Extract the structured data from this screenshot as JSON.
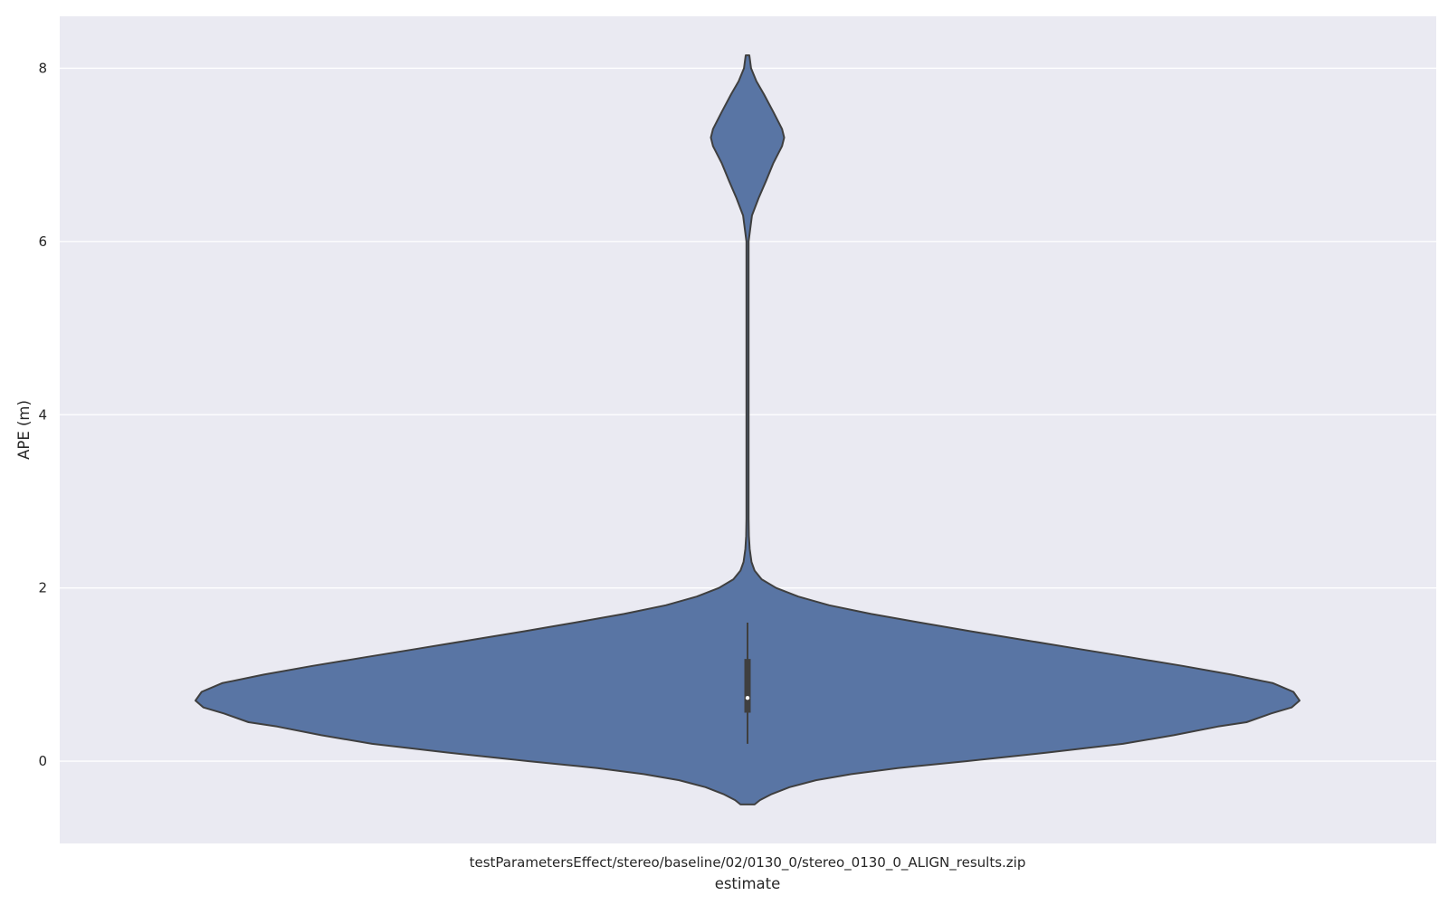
{
  "chart_data": {
    "type": "violin",
    "title": "",
    "xlabel": "estimate",
    "ylabel": "APE (m)",
    "categories": [
      "testParametersEffect/stereo/baseline/02/0130_0/stereo_0130_0_ALIGN_results.zip"
    ],
    "ylim": [
      -0.95,
      8.6
    ],
    "yticks": [
      0,
      2,
      4,
      6,
      8
    ],
    "grid": true,
    "legend": "none",
    "violin": {
      "min": -0.5,
      "max": 8.15,
      "density": [
        [
          -0.5,
          0.016
        ],
        [
          -0.45,
          0.028
        ],
        [
          -0.38,
          0.055
        ],
        [
          -0.3,
          0.095
        ],
        [
          -0.22,
          0.155
        ],
        [
          -0.15,
          0.235
        ],
        [
          -0.08,
          0.34
        ],
        [
          0.0,
          0.495
        ],
        [
          0.1,
          0.68
        ],
        [
          0.2,
          0.85
        ],
        [
          0.3,
          0.965
        ],
        [
          0.4,
          1.065
        ],
        [
          0.45,
          1.13
        ],
        [
          0.55,
          1.185
        ],
        [
          0.62,
          1.232
        ],
        [
          0.7,
          1.25
        ],
        [
          0.8,
          1.236
        ],
        [
          0.9,
          1.19
        ],
        [
          1.0,
          1.095
        ],
        [
          1.1,
          0.985
        ],
        [
          1.2,
          0.865
        ],
        [
          1.3,
          0.745
        ],
        [
          1.4,
          0.625
        ],
        [
          1.5,
          0.505
        ],
        [
          1.6,
          0.39
        ],
        [
          1.7,
          0.28
        ],
        [
          1.8,
          0.185
        ],
        [
          1.9,
          0.115
        ],
        [
          2.0,
          0.065
        ],
        [
          2.1,
          0.032
        ],
        [
          2.2,
          0.016
        ],
        [
          2.3,
          0.009
        ],
        [
          2.45,
          0.005
        ],
        [
          2.6,
          0.003
        ],
        [
          2.8,
          0.0025
        ],
        [
          6.0,
          0.0025
        ],
        [
          6.3,
          0.01
        ],
        [
          6.5,
          0.025
        ],
        [
          6.7,
          0.042
        ],
        [
          6.9,
          0.058
        ],
        [
          7.1,
          0.078
        ],
        [
          7.2,
          0.083
        ],
        [
          7.3,
          0.078
        ],
        [
          7.5,
          0.058
        ],
        [
          7.7,
          0.037
        ],
        [
          7.85,
          0.02
        ],
        [
          8.0,
          0.008
        ],
        [
          8.15,
          0.004
        ]
      ],
      "quartiles": [
        0.56,
        1.18
      ],
      "median": 0.73,
      "whiskers": [
        0.2,
        1.6
      ]
    },
    "colors": {
      "fill": "#5975a4",
      "edge": "#3f3f3f",
      "background": "#eaeaf2",
      "grid": "#ffffff",
      "box": "#3f3f3f",
      "median": "#ffffff"
    }
  }
}
